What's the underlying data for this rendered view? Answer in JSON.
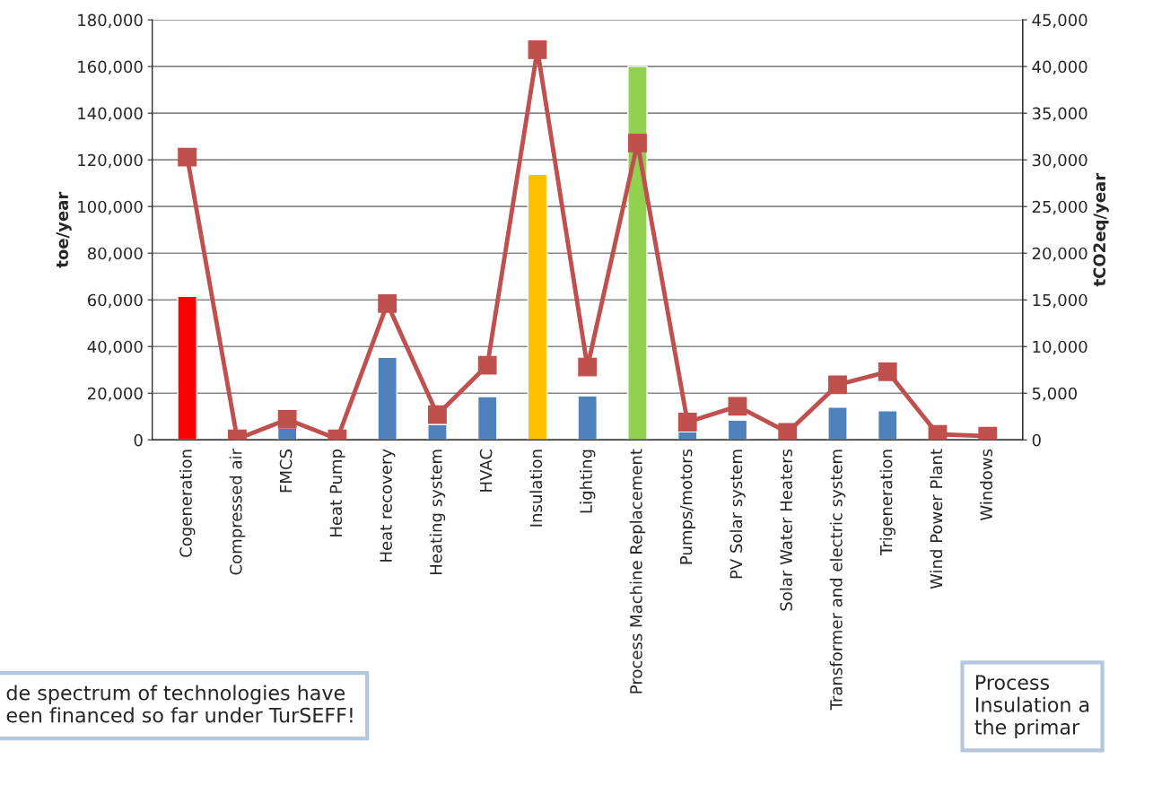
{
  "chart_data": {
    "type": "bar",
    "categories": [
      "Cogeneration",
      "Compressed air",
      "FMCS",
      "Heat Pump",
      "Heat recovery",
      "Heating system",
      "HVAC",
      "Insulation",
      "Lighting",
      "Process Machine Replacement",
      "Pumps/motors",
      "PV Solar system",
      "Solar Water Heaters",
      "Transformer and electric system",
      "Trigeneration",
      "Wind Power Plant",
      "Windows"
    ],
    "ylabel": "toe/year",
    "y2label": "tCO2eq/year",
    "series": [
      {
        "colors": [
          "#ff0000",
          "#4f81bd",
          "#4f81bd",
          "#4f81bd",
          "#4f81bd",
          "#4f81bd",
          "#4f81bd",
          "#ffc000",
          "#4f81bd",
          "#92d050",
          "#4f81bd",
          "#4f81bd",
          "#4f81bd",
          "#4f81bd",
          "#4f81bd",
          "#4f81bd",
          "#4f81bd"
        ],
        "values": [
          61500,
          null,
          5000,
          null,
          35400,
          6500,
          18500,
          113800,
          18800,
          160000,
          3500,
          8500,
          null,
          14000,
          12500,
          null,
          null
        ]
      },
      {
        "type": "line",
        "axis": "y2",
        "color": "#c0504d",
        "marker": "square",
        "line_style": "solid",
        "values": [
          30300,
          100,
          2200,
          100,
          14600,
          2700,
          8000,
          41800,
          7800,
          31800,
          1900,
          3600,
          800,
          5900,
          7300,
          600,
          400
        ]
      }
    ],
    "ylim": [
      0,
      180000
    ],
    "yticks": [
      {
        "value": 0,
        "label": "0"
      },
      {
        "value": 20000,
        "label": "20,000"
      },
      {
        "value": 40000,
        "label": "40,000"
      },
      {
        "value": 60000,
        "label": "60,000"
      },
      {
        "value": 80000,
        "label": "80,000"
      },
      {
        "value": 100000,
        "label": "100,000"
      },
      {
        "value": 120000,
        "label": "120,000"
      },
      {
        "value": 140000,
        "label": "140,000"
      },
      {
        "value": 160000,
        "label": "160,000"
      },
      {
        "value": 180000,
        "label": "180,000"
      }
    ],
    "y2lim": [
      0,
      45000
    ],
    "y2ticks": [
      {
        "value": 0,
        "label": "0"
      },
      {
        "value": 5000,
        "label": "5,000"
      },
      {
        "value": 10000,
        "label": "10,000"
      },
      {
        "value": 15000,
        "label": "15,000"
      },
      {
        "value": 20000,
        "label": "20,000"
      },
      {
        "value": 25000,
        "label": "25,000"
      },
      {
        "value": 30000,
        "label": "30,000"
      },
      {
        "value": 35000,
        "label": "35,000"
      },
      {
        "value": 40000,
        "label": "40,000"
      },
      {
        "value": 45000,
        "label": "45,000"
      }
    ],
    "grid": "y",
    "annotations": [
      "de spectrum of technologies have\neen financed so far under TurSEFF!",
      "Process\nInsulation a\nthe primar"
    ]
  }
}
